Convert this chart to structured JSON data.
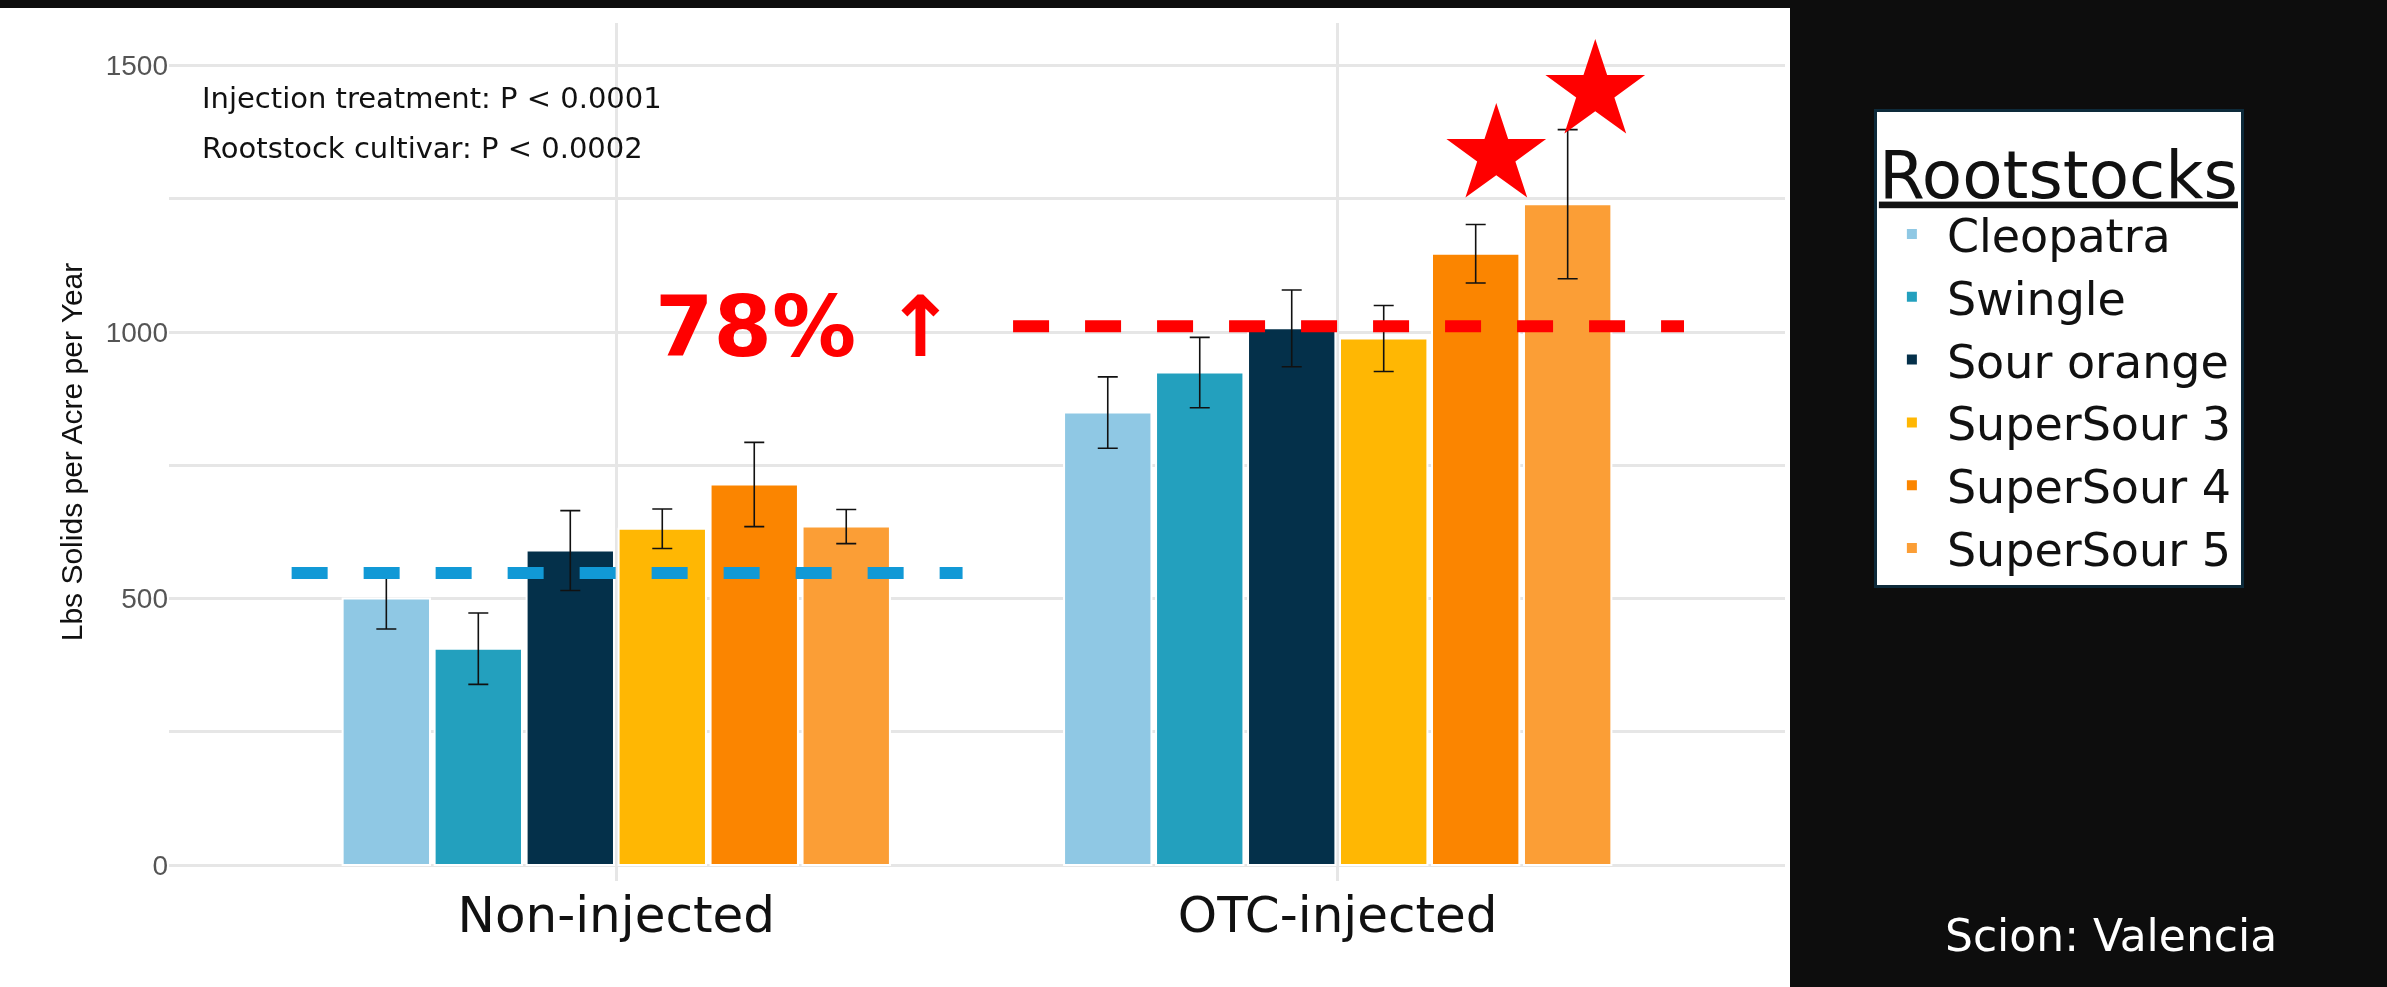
{
  "chart_data": {
    "type": "bar",
    "ylabel": "Lbs Solids per Acre per Year",
    "legend_title": "Rootstocks",
    "categories": [
      "Non-injected",
      "OTC-injected"
    ],
    "series": [
      {
        "name": "Cleopatra",
        "color": "#8fc8e4",
        "values": [
          500,
          849
        ],
        "errors": [
          57,
          67
        ]
      },
      {
        "name": "Swingle",
        "color": "#23a0be",
        "values": [
          406,
          924
        ],
        "errors": [
          67,
          66
        ]
      },
      {
        "name": "Sour orange",
        "color": "#04304a",
        "values": [
          590,
          1007
        ],
        "errors": [
          75,
          72
        ]
      },
      {
        "name": "SuperSour 3",
        "color": "#ffb703",
        "values": [
          631,
          988
        ],
        "errors": [
          37,
          62
        ]
      },
      {
        "name": "SuperSour 4",
        "color": "#fb8500",
        "values": [
          714,
          1147
        ],
        "errors": [
          79,
          55
        ]
      },
      {
        "name": "SuperSour 5",
        "color": "#fb9e36",
        "values": [
          635,
          1240
        ],
        "errors": [
          32,
          140
        ]
      }
    ],
    "ylim": [
      -30,
      1580
    ],
    "yticks": [
      0,
      {
        "value": 250,
        "label": null
      },
      500,
      {
        "value": 750,
        "label": null
      },
      1000,
      {
        "value": 1250,
        "label": null
      },
      1500
    ],
    "grid": true,
    "legend": "right",
    "ref_lines": [
      {
        "axis": "y",
        "value": 548,
        "color": "#1199d6",
        "line_style": "dashed"
      },
      {
        "axis": "y",
        "value": 1011,
        "color": "#ff0000",
        "line_style": "dashed"
      }
    ],
    "annotations": [
      "Injection treatment: P < 0.0001",
      "Rootstock cultivar: P < 0.0002",
      "78% ↑",
      "★",
      "★",
      "Scion: Valencia"
    ]
  }
}
